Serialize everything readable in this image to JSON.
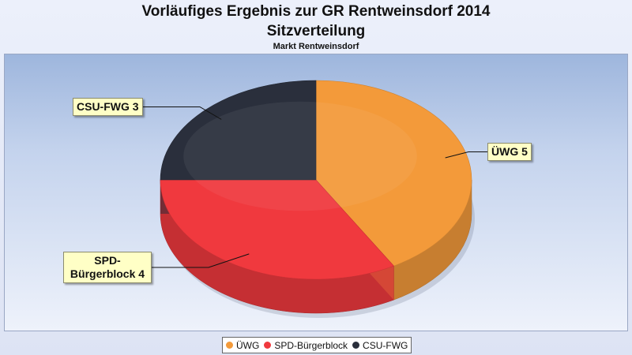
{
  "chart_data": {
    "type": "pie",
    "title": "Vorläufiges Ergebnis zur GR Rentweinsdorf 2014",
    "subtitle": "Sitzverteilung",
    "caption": "Markt Rentweinsdorf",
    "legend_position": "bottom",
    "three_d": true,
    "slices": [
      {
        "label": "ÜWG",
        "value": 5,
        "data_label": "ÜWG 5",
        "color": "#f39a3a"
      },
      {
        "label": "SPD-Bürgerblock",
        "value": 4,
        "data_label": "SPD-\nBürgerblock 4",
        "color": "#f0393e"
      },
      {
        "label": "CSU-FWG",
        "value": 3,
        "data_label": "CSU-FWG 3",
        "color": "#2a2f3c"
      }
    ]
  }
}
